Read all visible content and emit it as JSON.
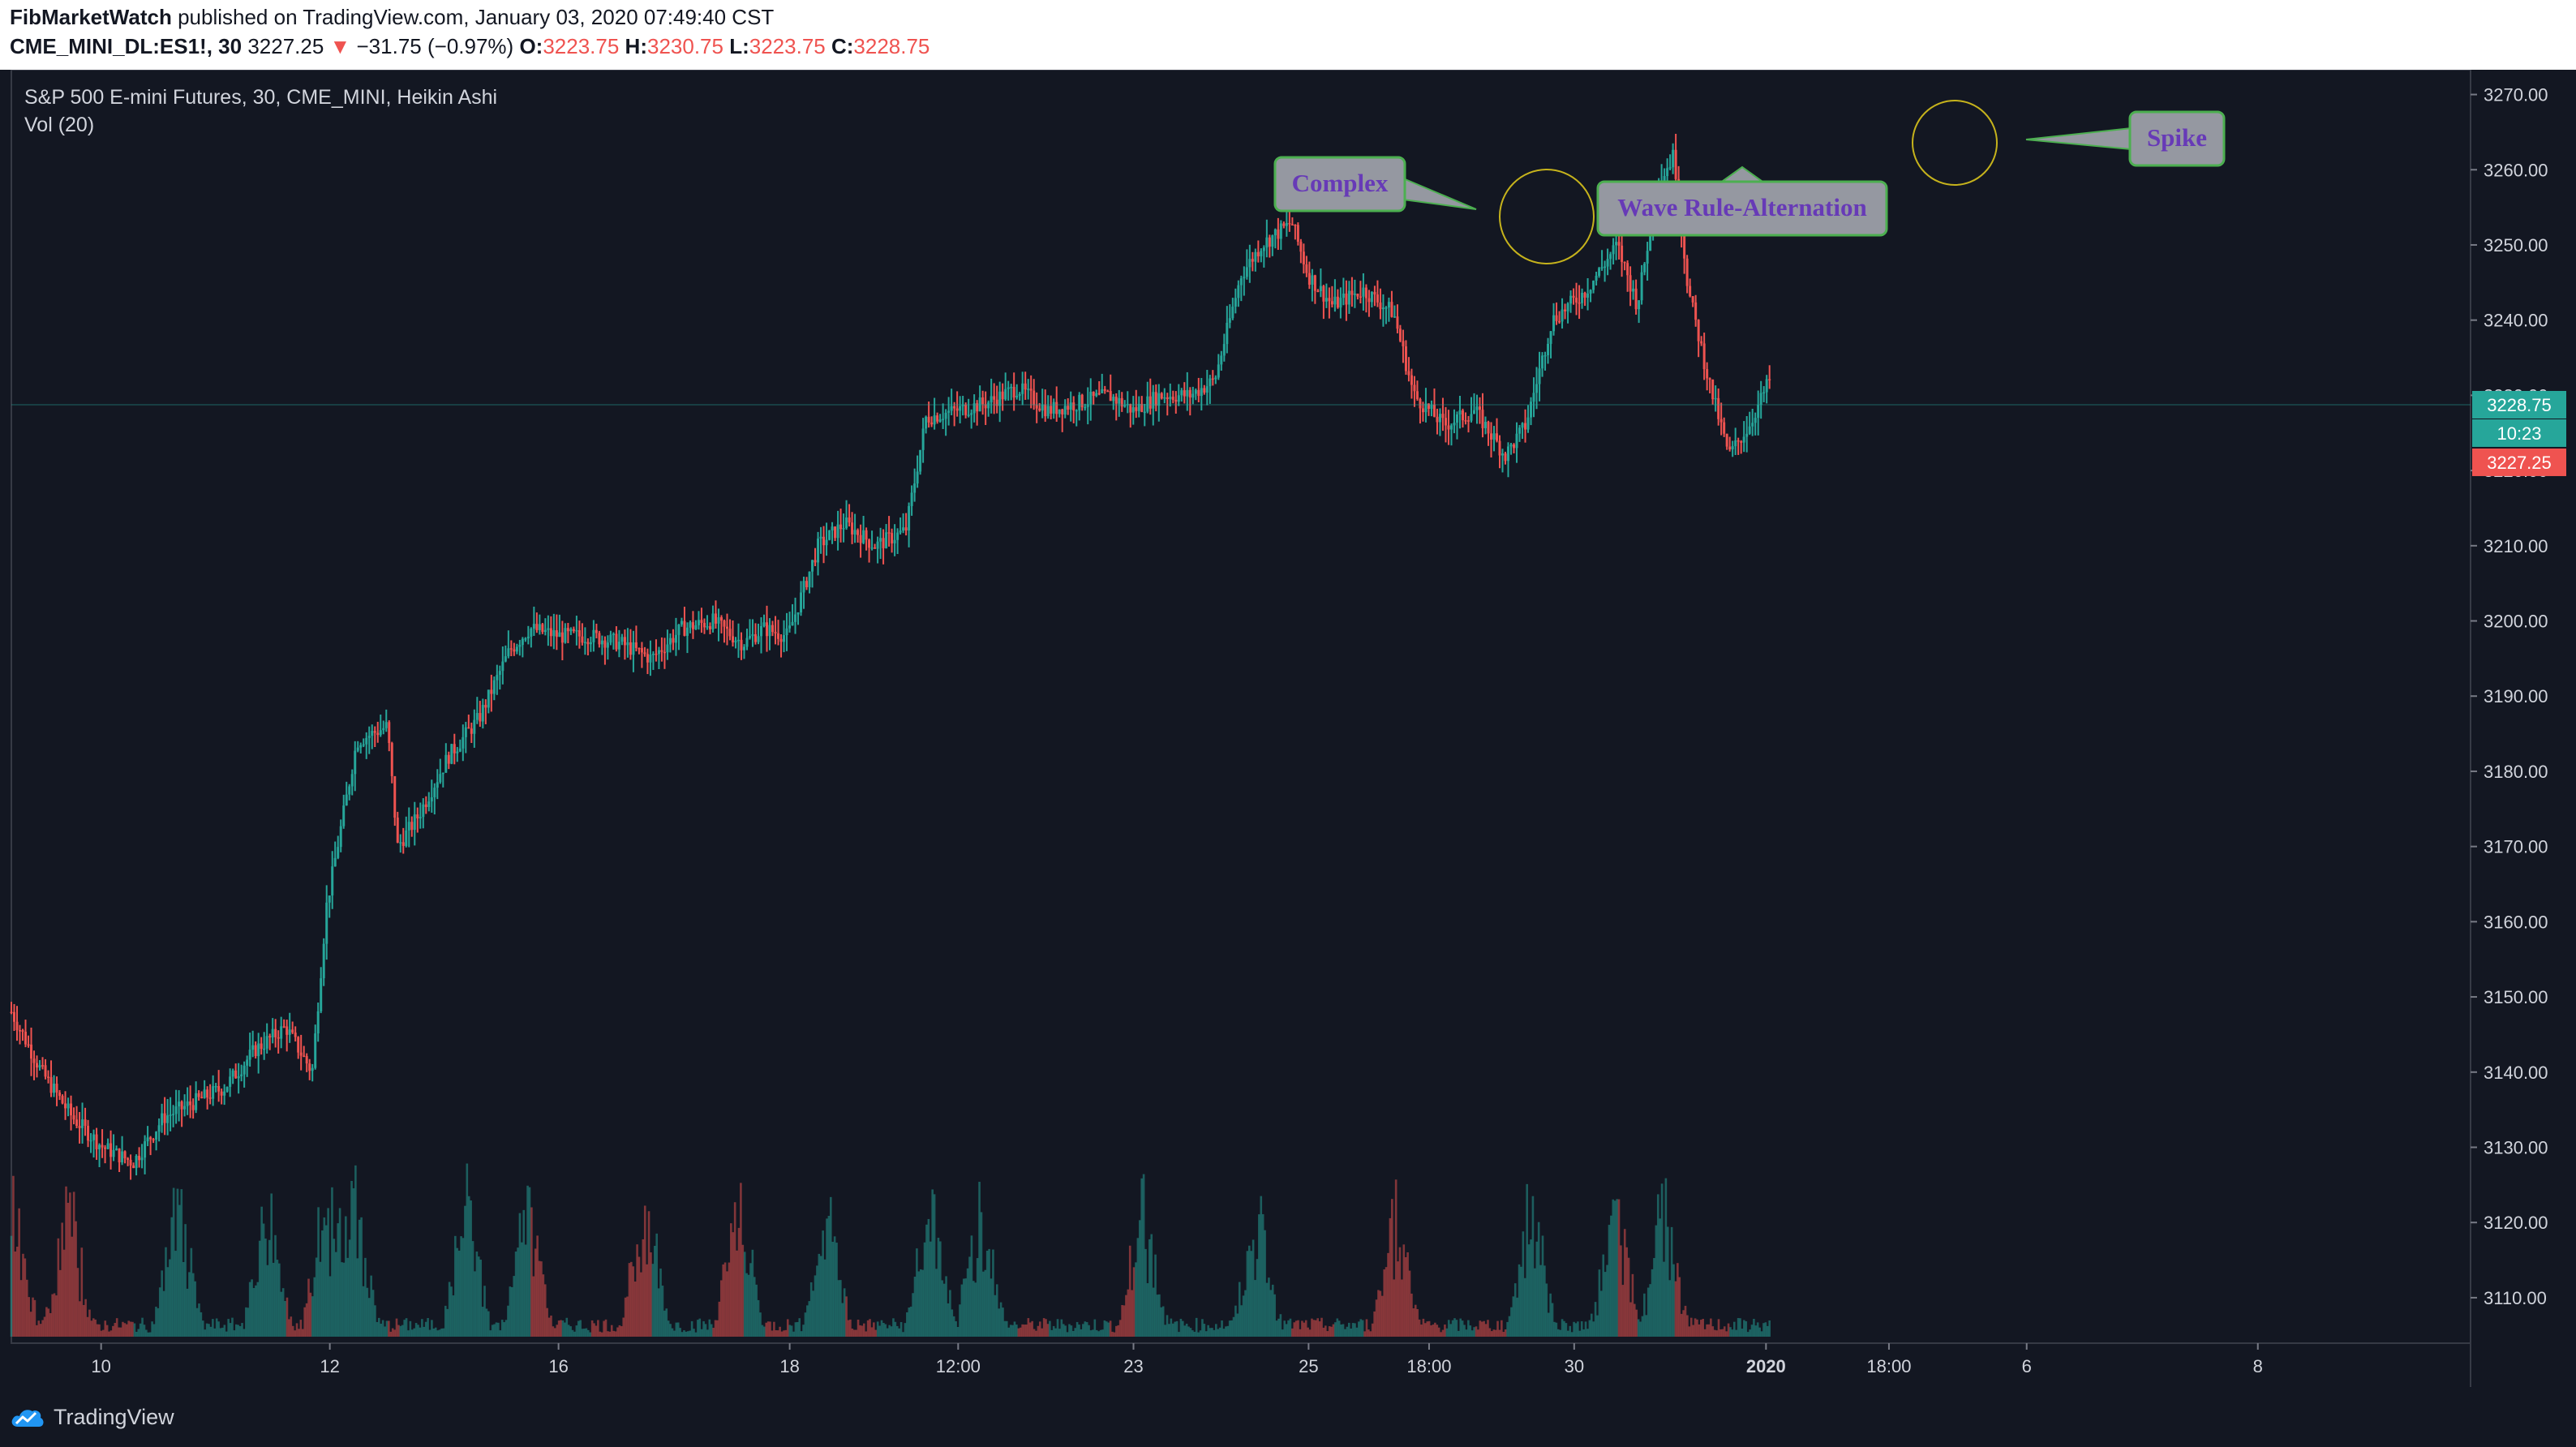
{
  "header": {
    "author": "FibMarketWatch",
    "published_text": "published on TradingView.com, January 03, 2020 07:49:40 CST",
    "symbol_interval": "CME_MINI_DL:ES1!, 30",
    "last_price": "3227.25",
    "change": "−31.75 (−0.97%)",
    "o_label": "O:",
    "o_value": "3223.75",
    "h_label": "H:",
    "h_value": "3230.75",
    "l_label": "L:",
    "l_value": "3223.75",
    "c_label": "C:",
    "c_value": "3228.75"
  },
  "legend": {
    "title": "S&P 500 E-mini Futures, 30, CME_MINI, Heikin Ashi",
    "volume": "Vol (20)"
  },
  "annotations": {
    "complex": "Complex",
    "wave_rule": "Wave Rule-Alternation",
    "spike": "Spike"
  },
  "price_tags": {
    "current": "3228.75",
    "countdown": "10:23",
    "last": "3227.25"
  },
  "footer": {
    "brand": "TradingView"
  },
  "colors": {
    "background": "#131722",
    "up": "#26a69a",
    "down": "#ef5350",
    "annotation_border": "#4caf50",
    "annotation_fill": "#9598a1",
    "annotation_text": "#673ab7",
    "highlight_circle": "#c6b31c"
  },
  "chart_data": {
    "type": "candlestick",
    "title": "S&P 500 E-mini Futures, 30, CME_MINI, Heikin Ashi",
    "style": "Heikin Ashi",
    "interval": "30",
    "y_axis": {
      "position": "right",
      "range": [
        3106,
        3272
      ],
      "ticks": [
        "3110.00",
        "3120.00",
        "3130.00",
        "3140.00",
        "3150.00",
        "3160.00",
        "3170.00",
        "3180.00",
        "3190.00",
        "3200.00",
        "3210.00",
        "3220.00",
        "3230.00",
        "3240.00",
        "3250.00",
        "3260.00",
        "3270.00"
      ]
    },
    "x_axis": {
      "ticks": [
        "10",
        "12",
        "16",
        "18",
        "12:00",
        "23",
        "25",
        "18:00",
        "30",
        "2020",
        "18:00",
        "6",
        "8"
      ]
    },
    "price_path": [
      [
        0,
        3148
      ],
      [
        0.015,
        3140
      ],
      [
        0.03,
        3134
      ],
      [
        0.045,
        3130
      ],
      [
        0.06,
        3128
      ],
      [
        0.075,
        3134
      ],
      [
        0.09,
        3136
      ],
      [
        0.105,
        3138
      ],
      [
        0.12,
        3143
      ],
      [
        0.135,
        3146
      ],
      [
        0.148,
        3140
      ],
      [
        0.155,
        3162
      ],
      [
        0.17,
        3184
      ],
      [
        0.185,
        3186
      ],
      [
        0.19,
        3170
      ],
      [
        0.2,
        3174
      ],
      [
        0.215,
        3182
      ],
      [
        0.23,
        3187
      ],
      [
        0.245,
        3196
      ],
      [
        0.255,
        3199
      ],
      [
        0.27,
        3198
      ],
      [
        0.285,
        3198
      ],
      [
        0.3,
        3197
      ],
      [
        0.315,
        3195
      ],
      [
        0.33,
        3199
      ],
      [
        0.345,
        3200
      ],
      [
        0.36,
        3197
      ],
      [
        0.37,
        3199
      ],
      [
        0.382,
        3198
      ],
      [
        0.397,
        3210
      ],
      [
        0.41,
        3213
      ],
      [
        0.425,
        3210
      ],
      [
        0.44,
        3212
      ],
      [
        0.45,
        3227
      ],
      [
        0.465,
        3228
      ],
      [
        0.48,
        3229
      ],
      [
        0.495,
        3231
      ],
      [
        0.51,
        3228
      ],
      [
        0.525,
        3229
      ],
      [
        0.54,
        3230
      ],
      [
        0.552,
        3228
      ],
      [
        0.565,
        3230
      ],
      [
        0.58,
        3230
      ],
      [
        0.592,
        3232
      ],
      [
        0.605,
        3246
      ],
      [
        0.615,
        3250
      ],
      [
        0.63,
        3253
      ],
      [
        0.638,
        3246
      ],
      [
        0.65,
        3242
      ],
      [
        0.665,
        3244
      ],
      [
        0.68,
        3241
      ],
      [
        0.69,
        3230
      ],
      [
        0.705,
        3226
      ],
      [
        0.72,
        3228
      ],
      [
        0.735,
        3222
      ],
      [
        0.745,
        3226
      ],
      [
        0.758,
        3240
      ],
      [
        0.775,
        3244
      ],
      [
        0.79,
        3250
      ],
      [
        0.8,
        3242
      ],
      [
        0.81,
        3258
      ],
      [
        0.818,
        3262
      ],
      [
        0.825,
        3244
      ],
      [
        0.835,
        3232
      ],
      [
        0.845,
        3222
      ],
      [
        0.855,
        3226
      ],
      [
        0.865,
        3232
      ]
    ],
    "volume_spikes": [
      0.001,
      0.028,
      0.082,
      0.126,
      0.155,
      0.169,
      0.224,
      0.254,
      0.312,
      0.358,
      0.401,
      0.452,
      0.477,
      0.557,
      0.613,
      0.681,
      0.748,
      0.789,
      0.813
    ],
    "volume_range": [
      0,
      1000
    ],
    "annotations": [
      "Complex",
      "Wave Rule-Alternation",
      "Spike"
    ],
    "last_price": 3228.75
  }
}
